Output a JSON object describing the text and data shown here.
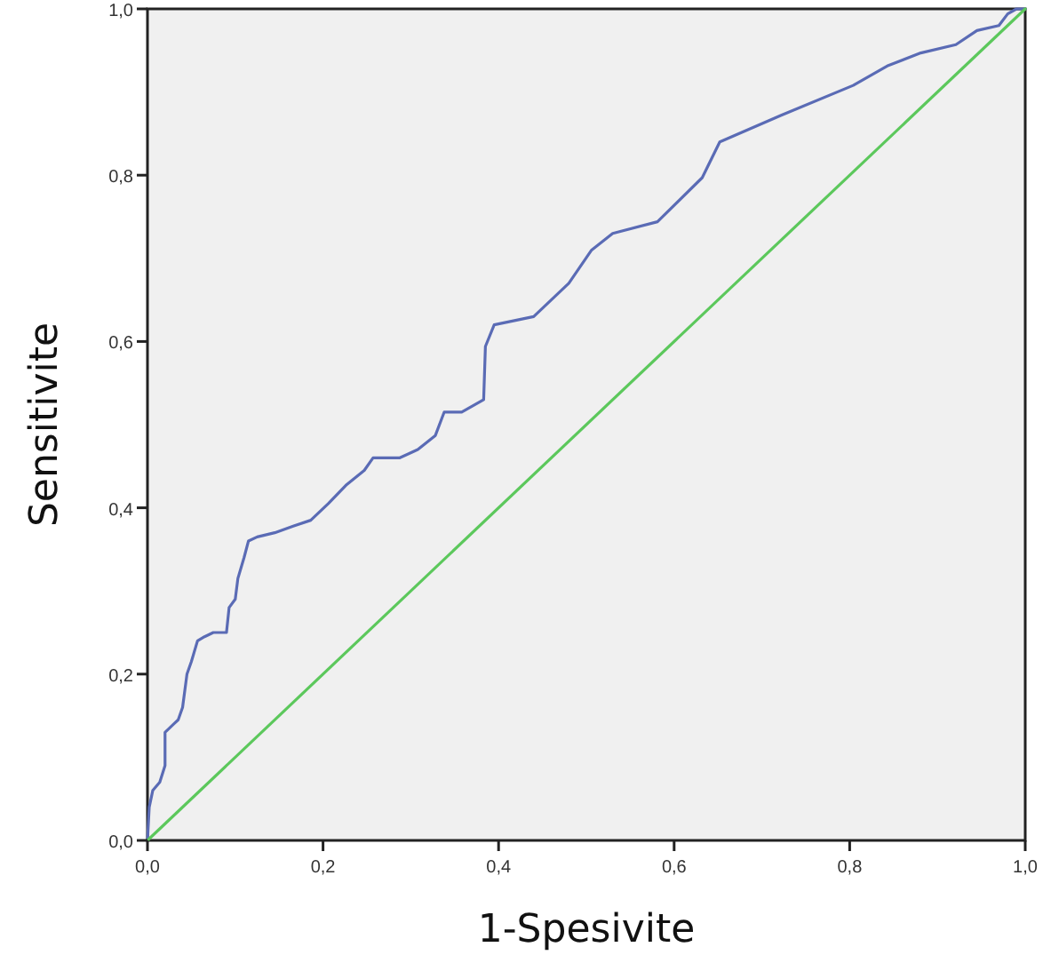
{
  "chart_data": {
    "type": "line",
    "xlabel": "1-Spesivite",
    "ylabel": "Sensitivite",
    "xlim": [
      0,
      1
    ],
    "ylim": [
      0,
      1
    ],
    "xticks": [
      {
        "value": 0,
        "label": "0,0"
      },
      {
        "value": 0.2,
        "label": "0,2"
      },
      {
        "value": 0.4,
        "label": "0,4"
      },
      {
        "value": 0.6,
        "label": "0,6"
      },
      {
        "value": 0.8,
        "label": "0,8"
      },
      {
        "value": 1,
        "label": "1,0"
      }
    ],
    "yticks": [
      {
        "value": 0,
        "label": "0,0"
      },
      {
        "value": 0.2,
        "label": "0,2"
      },
      {
        "value": 0.4,
        "label": "0,4"
      },
      {
        "value": 0.6,
        "label": "0,6"
      },
      {
        "value": 0.8,
        "label": "0,8"
      },
      {
        "value": 1,
        "label": "1,0"
      }
    ],
    "series": [
      {
        "color": "#5a6bb5",
        "x": [
          0,
          0.002,
          0.006,
          0.014,
          0.02,
          0.02,
          0.03,
          0.035,
          0.04,
          0.045,
          0.05,
          0.057,
          0.065,
          0.075,
          0.09,
          0.093,
          0.1,
          0.103,
          0.11,
          0.115,
          0.125,
          0.145,
          0.166,
          0.186,
          0.206,
          0.227,
          0.247,
          0.257,
          0.287,
          0.308,
          0.328,
          0.338,
          0.358,
          0.383,
          0.385,
          0.395,
          0.44,
          0.48,
          0.506,
          0.53,
          0.581,
          0.632,
          0.652,
          0.722,
          0.804,
          0.844,
          0.881,
          0.921,
          0.945,
          0.97,
          0.98,
          0.99,
          1
        ],
        "values": [
          0,
          0.04,
          0.06,
          0.07,
          0.09,
          0.13,
          0.14,
          0.145,
          0.16,
          0.2,
          0.215,
          0.24,
          0.245,
          0.25,
          0.25,
          0.28,
          0.29,
          0.315,
          0.34,
          0.36,
          0.365,
          0.37,
          0.378,
          0.385,
          0.405,
          0.428,
          0.445,
          0.46,
          0.46,
          0.47,
          0.487,
          0.515,
          0.515,
          0.53,
          0.594,
          0.62,
          0.63,
          0.67,
          0.71,
          0.73,
          0.744,
          0.797,
          0.84,
          0.872,
          0.908,
          0.932,
          0.947,
          0.957,
          0.974,
          0.98,
          0.994,
          1,
          1
        ]
      },
      {
        "color": "#5cc85c",
        "x": [
          0,
          1
        ],
        "values": [
          0,
          1
        ]
      }
    ]
  }
}
